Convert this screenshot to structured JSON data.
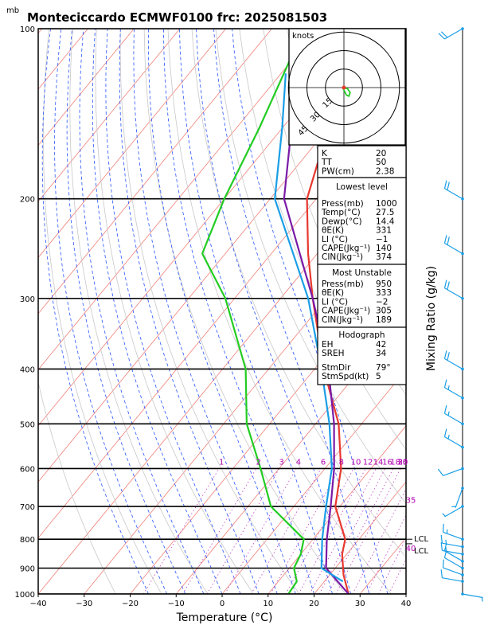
{
  "chart_data": {
    "type": "line",
    "title": "Monteciccardo ECMWF0100  frc: 2025081503",
    "y_unit_label": "mb",
    "xlabel": "Temperature (°C)",
    "ylabel_right": "Mixing Ratio (g/kg)",
    "xlim": [
      -40,
      40
    ],
    "ylim": [
      1000,
      100
    ],
    "x_ticks": [
      "−40",
      "−30",
      "−20",
      "−10",
      "0",
      "10",
      "20",
      "30",
      "40"
    ],
    "p_ticks": [
      "100",
      "200",
      "300",
      "400",
      "500",
      "600",
      "700",
      "800",
      "900",
      "1000"
    ],
    "mixing_ratio_labels": [
      "1",
      "2",
      "3",
      "4",
      "6",
      "8",
      "10",
      "12",
      "14",
      "16",
      "18",
      "20",
      "25",
      "30",
      "35",
      "40"
    ],
    "lcl_labels": [
      "LCL",
      "LCL"
    ],
    "series": [
      {
        "name": "Temperature",
        "color": "#e8382e",
        "p": [
          1000,
          925,
          850,
          800,
          700,
          600,
          500,
          400,
          300,
          250,
          200,
          150,
          100
        ],
        "t": [
          27.5,
          23,
          19,
          17,
          9,
          3.5,
          -5,
          -18,
          -33,
          -42,
          -52,
          -60,
          -66
        ]
      },
      {
        "name": "Dewpoint",
        "color": "#22cc22",
        "p": [
          1000,
          950,
          900,
          850,
          800,
          700,
          600,
          500,
          400,
          300,
          250,
          200,
          150,
          100
        ],
        "t": [
          14.4,
          14,
          11,
          10,
          8,
          -5,
          -14,
          -25,
          -35,
          -52,
          -65,
          -70,
          -75,
          -83
        ]
      },
      {
        "name": "Parcel",
        "color": "#7a1aa8",
        "p": [
          1000,
          900,
          800,
          700,
          600,
          500,
          400,
          300,
          200,
          150,
          120
        ],
        "t": [
          27.5,
          18,
          13,
          8,
          2,
          -6,
          -17,
          -33,
          -57,
          -68,
          -77
        ]
      },
      {
        "name": "Parcel MU",
        "color": "#1a9ee6",
        "p": [
          950,
          900,
          800,
          700,
          600,
          500,
          400,
          300,
          200,
          150,
          120
        ],
        "t": [
          24,
          17,
          12,
          7,
          1.5,
          -7,
          -18.5,
          -34,
          -59,
          -70,
          -79
        ]
      }
    ],
    "hodograph": {
      "unit_label": "knots",
      "ring_labels": [
        "15",
        "30",
        "45"
      ],
      "u": [
        0,
        -0.5,
        0.5,
        2,
        4,
        5,
        3,
        0
      ],
      "v": [
        0,
        -1,
        -3,
        -6,
        -7,
        -4,
        -1,
        0
      ]
    },
    "indices": [
      {
        "label": "K",
        "value": "20"
      },
      {
        "label": "TT",
        "value": "50"
      },
      {
        "label": "PW(cm)",
        "value": "2.38"
      }
    ],
    "lowest_level": {
      "header": "Lowest level",
      "rows": [
        {
          "label": "Press(mb)",
          "value": "1000"
        },
        {
          "label": "Temp(°C)",
          "value": "27.5"
        },
        {
          "label": "Dewp(°C)",
          "value": "14.4"
        },
        {
          "label": "θE(K)",
          "value": "331"
        },
        {
          "label": "LI (°C)",
          "value": "−1"
        },
        {
          "label": "CAPE(Jkg⁻¹)",
          "value": "140"
        },
        {
          "label": "CIN(Jkg⁻¹)",
          "value": "374"
        }
      ]
    },
    "most_unstable": {
      "header": "Most Unstable",
      "rows": [
        {
          "label": "Press(mb)",
          "value": "950"
        },
        {
          "label": "θE(K)",
          "value": "333"
        },
        {
          "label": "LI (°C)",
          "value": "−2"
        },
        {
          "label": "CAPE(Jkg⁻¹)",
          "value": "305"
        },
        {
          "label": "CIN(Jkg⁻¹)",
          "value": "189"
        }
      ]
    },
    "hodograph_box": {
      "header": "Hodograph",
      "rows": [
        {
          "label": "EH",
          "value": "42"
        },
        {
          "label": "SREH",
          "value": "34"
        },
        {
          "label": "StmDir",
          "value": "79°"
        },
        {
          "label": "StmSpd(kt)",
          "value": "5"
        }
      ]
    },
    "winds": [
      {
        "p": 1000,
        "dir": 100,
        "spd": 5
      },
      {
        "p": 950,
        "dir": 280,
        "spd": 10
      },
      {
        "p": 925,
        "dir": 290,
        "spd": 10
      },
      {
        "p": 900,
        "dir": 300,
        "spd": 10
      },
      {
        "p": 875,
        "dir": 300,
        "spd": 10
      },
      {
        "p": 850,
        "dir": 280,
        "spd": 15
      },
      {
        "p": 825,
        "dir": 280,
        "spd": 15
      },
      {
        "p": 800,
        "dir": 290,
        "spd": 15
      },
      {
        "p": 700,
        "dir": 240,
        "spd": 5
      },
      {
        "p": 650,
        "dir": 200,
        "spd": 5
      },
      {
        "p": 600,
        "dir": 250,
        "spd": 10
      },
      {
        "p": 550,
        "dir": 300,
        "spd": 15
      },
      {
        "p": 500,
        "dir": 300,
        "spd": 15
      },
      {
        "p": 450,
        "dir": 300,
        "spd": 15
      },
      {
        "p": 400,
        "dir": 300,
        "spd": 20
      },
      {
        "p": 300,
        "dir": 300,
        "spd": 20
      },
      {
        "p": 250,
        "dir": 300,
        "spd": 20
      },
      {
        "p": 200,
        "dir": 300,
        "spd": 20
      },
      {
        "p": 100,
        "dir": 240,
        "spd": 20
      }
    ]
  }
}
